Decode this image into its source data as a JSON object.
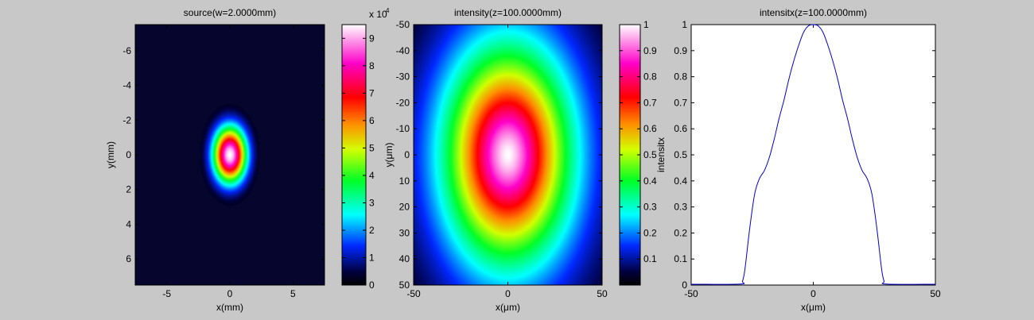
{
  "figure": {
    "background": "#c8c8c8"
  },
  "chart_data": [
    {
      "type": "heatmap",
      "title": "source(w=2.0000mm)",
      "xlabel": "x(mm)",
      "ylabel": "y(mm)",
      "xlim": [
        -7.5,
        7.5
      ],
      "ylim": [
        -7.5,
        7.5
      ],
      "y_reversed": true,
      "xticks": [
        -5,
        0,
        5
      ],
      "yticks": [
        -6,
        -4,
        -2,
        0,
        2,
        4,
        6
      ],
      "field": {
        "shape": "gaussian",
        "center": [
          0,
          0
        ],
        "sigma_x": 0.9,
        "sigma_y": 1.1,
        "peak": 95000
      },
      "colorbar": {
        "range": [
          0,
          95000
        ],
        "ticks": [
          0,
          10000,
          20000,
          30000,
          40000,
          50000,
          60000,
          70000,
          80000,
          90000
        ],
        "ticklabels": [
          "0",
          "1",
          "2",
          "3",
          "4",
          "5",
          "6",
          "7",
          "8",
          "9"
        ],
        "exponent_base": "x 10",
        "exponent_power": "4",
        "label": ""
      }
    },
    {
      "type": "heatmap",
      "title": "intensity(z=100.0000mm)",
      "xlabel": "x(μm)",
      "ylabel": "y(μm)",
      "xlim": [
        -50,
        50
      ],
      "ylim": [
        -50,
        50
      ],
      "y_reversed": true,
      "xticks": [
        -50,
        0,
        50
      ],
      "yticks": [
        -50,
        -40,
        -30,
        -20,
        -10,
        0,
        10,
        20,
        30,
        40,
        50
      ],
      "field": {
        "shape": "super-gaussian",
        "center": [
          0,
          0
        ],
        "sigma_x": 21,
        "sigma_y": 26,
        "order": 1.6,
        "peak": 1
      },
      "colorbar": {
        "range": [
          0,
          1
        ],
        "ticks": [
          0.1,
          0.2,
          0.3,
          0.4,
          0.5,
          0.6,
          0.7,
          0.8,
          0.9,
          1
        ],
        "ticklabels": [
          "0.1",
          "0.2",
          "0.3",
          "0.4",
          "0.5",
          "0.6",
          "0.7",
          "0.8",
          "0.9",
          "1"
        ],
        "exponent_base": "",
        "exponent_power": "",
        "label": "intensitx"
      }
    },
    {
      "type": "line",
      "title": "intensitx(z=100.0000mm)",
      "xlabel": "x(μm)",
      "ylabel": "",
      "xlim": [
        -50,
        50
      ],
      "ylim": [
        0,
        1
      ],
      "xticks": [
        -50,
        0,
        50
      ],
      "yticks": [
        0,
        0.1,
        0.2,
        0.3,
        0.4,
        0.5,
        0.6,
        0.7,
        0.8,
        0.9,
        1
      ],
      "line_color": "#0000cc",
      "series": [
        {
          "x": [
            -50,
            -30,
            -29,
            -28,
            -26,
            -24,
            -22,
            -20,
            -18,
            -16,
            -14,
            -12,
            -10,
            -8,
            -6,
            -4,
            -2,
            0,
            2,
            4,
            6,
            8,
            10,
            12,
            14,
            16,
            18,
            20,
            22,
            24,
            26,
            28,
            29,
            30,
            50
          ],
          "y": [
            0.003,
            0.004,
            0.015,
            0.06,
            0.22,
            0.35,
            0.41,
            0.44,
            0.49,
            0.56,
            0.64,
            0.71,
            0.79,
            0.86,
            0.92,
            0.97,
            0.995,
            1.0,
            0.995,
            0.97,
            0.92,
            0.86,
            0.79,
            0.71,
            0.64,
            0.56,
            0.49,
            0.44,
            0.41,
            0.35,
            0.22,
            0.06,
            0.015,
            0.004,
            0.003
          ]
        }
      ]
    }
  ]
}
